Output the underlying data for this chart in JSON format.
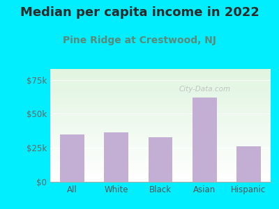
{
  "title": "Median per capita income in 2022",
  "subtitle": "Pine Ridge at Crestwood, NJ",
  "categories": [
    "All",
    "White",
    "Black",
    "Asian",
    "Hispanic"
  ],
  "values": [
    35000,
    36500,
    33000,
    62000,
    26000
  ],
  "bar_color": "#c4afd4",
  "title_color": "#2a2a2a",
  "subtitle_color": "#5a8a7a",
  "background_outer": "#00eeff",
  "yticks": [
    0,
    25000,
    50000,
    75000
  ],
  "ytick_labels": [
    "$0",
    "$25k",
    "$50k",
    "$75k"
  ],
  "ylim": [
    0,
    83000
  ],
  "watermark": "City-Data.com",
  "title_fontsize": 13,
  "subtitle_fontsize": 10,
  "tick_fontsize": 8.5,
  "xtick_color": "#555555",
  "ytick_color": "#666666"
}
